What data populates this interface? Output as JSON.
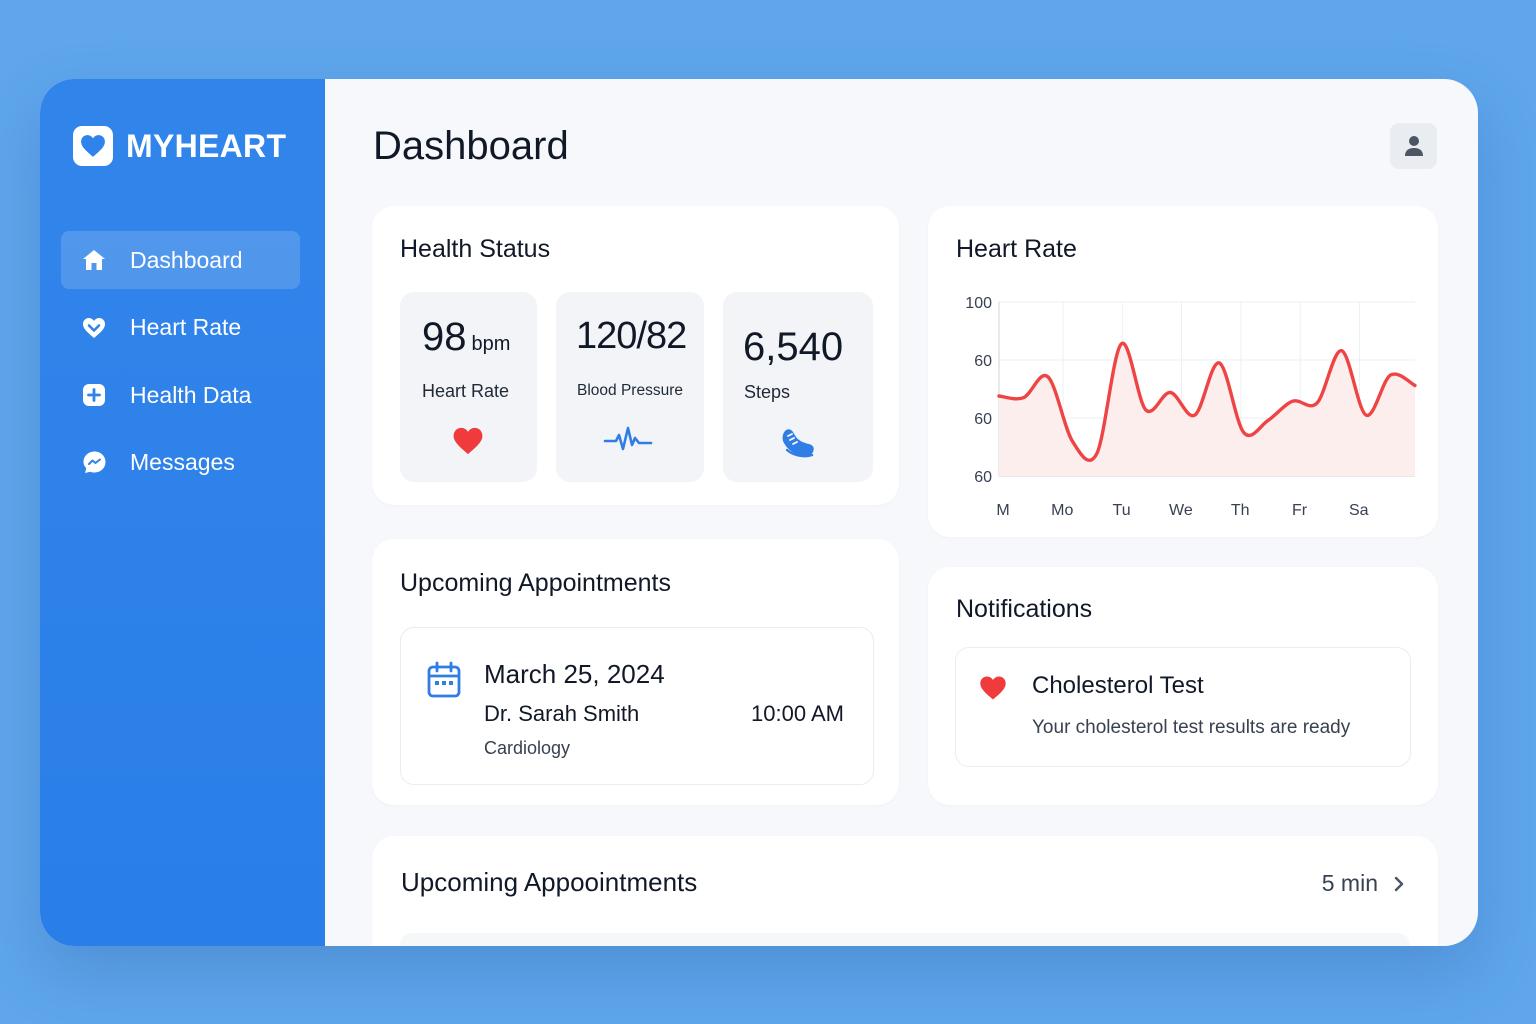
{
  "brand": {
    "name": "MYHEART"
  },
  "sidebar": {
    "items": [
      {
        "label": "Dashboard",
        "icon": "home-icon",
        "active": true
      },
      {
        "label": "Heart Rate",
        "icon": "heart-icon",
        "active": false
      },
      {
        "label": "Health Data",
        "icon": "plus-square-icon",
        "active": false
      },
      {
        "label": "Messages",
        "icon": "message-icon",
        "active": false
      }
    ]
  },
  "header": {
    "title": "Dashboard",
    "user_icon": "user-icon"
  },
  "health_status": {
    "title": "Health Status",
    "metrics": [
      {
        "value": "98",
        "unit": "bpm",
        "label": "Heart Rate",
        "icon": "heart-icon"
      },
      {
        "value": "120/82",
        "label": "Blood Pressure",
        "icon": "pulse-icon"
      },
      {
        "value": "6,540",
        "label": "Steps",
        "icon": "shoe-icon"
      }
    ]
  },
  "heart_rate_chart": {
    "title": "Heart Rate",
    "y_ticks": [
      "100",
      "60",
      "60",
      "60"
    ],
    "x_ticks": [
      "M",
      "Mo",
      "Tu",
      "We",
      "Th",
      "Fr",
      "Sa"
    ],
    "line_color": "#ef4444",
    "fill_color": "#fdeeee"
  },
  "chart_data": {
    "type": "line",
    "title": "Heart Rate",
    "xlabel": "",
    "ylabel": "",
    "x_tick_labels": [
      "M",
      "Mo",
      "Tu",
      "We",
      "Th",
      "Fr",
      "Sa"
    ],
    "y_tick_labels": [
      "100",
      "60",
      "60",
      "60"
    ],
    "grid": true,
    "series": [
      {
        "color": "#ef4444",
        "values": [
          0.46,
          0.45,
          0.57,
          0.2,
          0.13,
          0.76,
          0.38,
          0.48,
          0.35,
          0.65,
          0.25,
          0.32,
          0.43,
          0.42,
          0.72,
          0.35,
          0.58,
          0.52
        ]
      }
    ]
  },
  "appointments": {
    "title": "Upcoming Appointments",
    "item": {
      "date": "March 25, 2024",
      "doctor": "Dr. Sarah Smith",
      "department": "Cardiology",
      "time": "10:00 AM",
      "icon": "calendar-icon"
    }
  },
  "notifications": {
    "title": "Notifications",
    "item": {
      "title": "Cholesterol Test",
      "message": "Your cholesterol test results are ready",
      "icon": "heart-icon"
    }
  },
  "bottom_section": {
    "title": "Upcoming Appoointments",
    "meta": "5 min",
    "icon": "chevron-right-icon"
  },
  "colors": {
    "sidebar": "#2f83ea",
    "accent_blue": "#2f7ee6",
    "heart_red": "#ef3b3b",
    "background": "#5fa6ec"
  }
}
